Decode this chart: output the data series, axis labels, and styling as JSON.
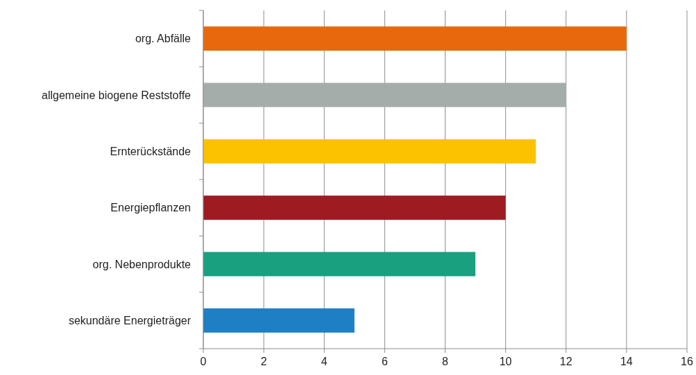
{
  "chart_data": {
    "type": "bar",
    "orientation": "horizontal",
    "categories": [
      "org. Abfälle",
      "allgemeine biogene Reststoffe",
      "Ernterückstände",
      "Energiepflanzen",
      "org. Nebenprodukte",
      "sekundäre Energieträger"
    ],
    "values": [
      14,
      12,
      11,
      10,
      9,
      5
    ],
    "colors": [
      "#e8690b",
      "#a5adaa",
      "#fcc200",
      "#9e1b22",
      "#18a07f",
      "#1f7fc4"
    ],
    "xlim": [
      0,
      16
    ],
    "xticks": [
      0,
      2,
      4,
      6,
      8,
      10,
      12,
      14,
      16
    ],
    "grid": "x"
  }
}
